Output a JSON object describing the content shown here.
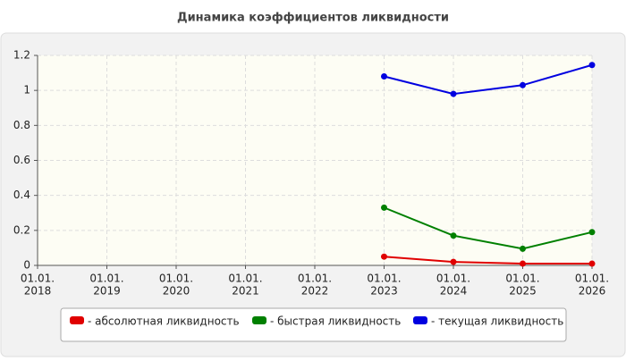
{
  "chart_data": {
    "type": "line",
    "title": "Динамика коэффициентов ликвидности",
    "categories": [
      [
        "01.01.",
        "2018"
      ],
      [
        "01.01.",
        "2019"
      ],
      [
        "01.01.",
        "2020"
      ],
      [
        "01.01.",
        "2021"
      ],
      [
        "01.01.",
        "2022"
      ],
      [
        "01.01.",
        "2023"
      ],
      [
        "01.01.",
        "2024"
      ],
      [
        "01.01.",
        "2025"
      ],
      [
        "01.01.",
        "2026"
      ]
    ],
    "series": [
      {
        "name": "- абсолютная ликвидность",
        "color": "#e00000",
        "values": [
          null,
          null,
          null,
          null,
          null,
          0.05,
          0.02,
          0.01,
          0.01
        ]
      },
      {
        "name": "- быстрая ликвидность",
        "color": "#008000",
        "values": [
          null,
          null,
          null,
          null,
          null,
          0.33,
          0.17,
          0.095,
          0.19
        ]
      },
      {
        "name": "- текущая ликвидность",
        "color": "#0000e0",
        "values": [
          null,
          null,
          null,
          null,
          null,
          1.08,
          0.98,
          1.03,
          1.145
        ]
      }
    ],
    "ylim": [
      0,
      1.2
    ],
    "yticks": [
      0,
      0.2,
      0.4,
      0.6,
      0.8,
      1,
      1.2
    ],
    "grid": true,
    "legend": "bottom"
  }
}
